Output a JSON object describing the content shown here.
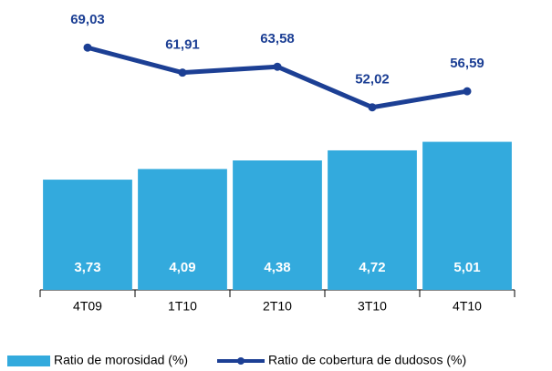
{
  "chart_data": {
    "type": "bar-line",
    "categories": [
      "4T09",
      "1T10",
      "2T10",
      "3T10",
      "4T10"
    ],
    "series": [
      {
        "name": "Ratio de morosidad (%)",
        "type": "bar",
        "color": "#33aadd",
        "values": [
          3.73,
          4.09,
          4.38,
          4.72,
          5.01
        ],
        "value_labels": [
          "3,73",
          "4,09",
          "4,38",
          "4,72",
          "5,01"
        ]
      },
      {
        "name": "Ratio de cobertura de dudosos (%)",
        "type": "line",
        "axis": "y2",
        "color": "#1c3f94",
        "values": [
          69.03,
          61.91,
          63.58,
          52.02,
          56.59
        ],
        "value_labels": [
          "69,03",
          "61,91",
          "63,58",
          "52,02",
          "56,59"
        ]
      }
    ],
    "ylim": [
      0,
      9.5
    ],
    "y2lim": [
      0,
      80
    ],
    "legend": "bottom"
  }
}
